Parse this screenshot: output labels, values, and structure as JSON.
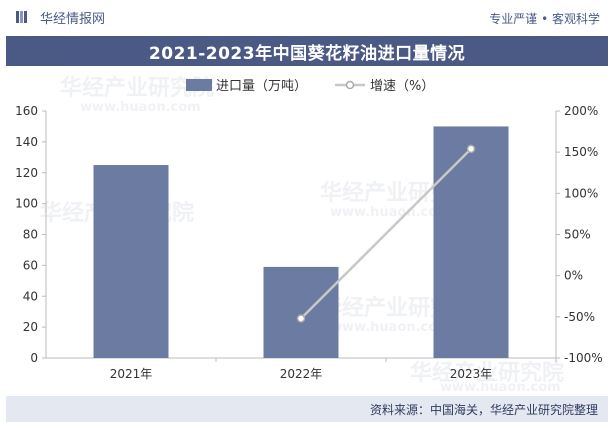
{
  "header": {
    "brand": "华经情报网",
    "slogan": "专业严谨 • 客观科学"
  },
  "title": "2021-2023年中国葵花籽油进口量情况",
  "footer": {
    "source": "资料来源：中国海关，华经产业研究院整理"
  },
  "watermark": {
    "text": "华经产业研究院",
    "url": "www.huaon.com"
  },
  "colors": {
    "brand": "#4a5a85",
    "bar": "#6b7ba1",
    "line": "#c8c8c8",
    "marker": "#ffffff"
  },
  "chart_data": {
    "type": "bar",
    "categories": [
      "2021年",
      "2022年",
      "2023年"
    ],
    "series": [
      {
        "name": "进口量（万吨）",
        "type": "bar",
        "axis": "left",
        "values": [
          125,
          59,
          150
        ]
      },
      {
        "name": "增速（%）",
        "type": "line",
        "axis": "right",
        "values": [
          null,
          -52,
          154
        ]
      }
    ],
    "y_left": {
      "min": 0,
      "max": 160,
      "ticks": [
        "0",
        "20",
        "40",
        "60",
        "80",
        "100",
        "120",
        "140",
        "160"
      ]
    },
    "y_right": {
      "min": -100,
      "max": 200,
      "ticks": [
        "-100%",
        "-50%",
        "0%",
        "50%",
        "100%",
        "150%",
        "200%"
      ]
    },
    "legend": "top-center",
    "grid": false
  }
}
